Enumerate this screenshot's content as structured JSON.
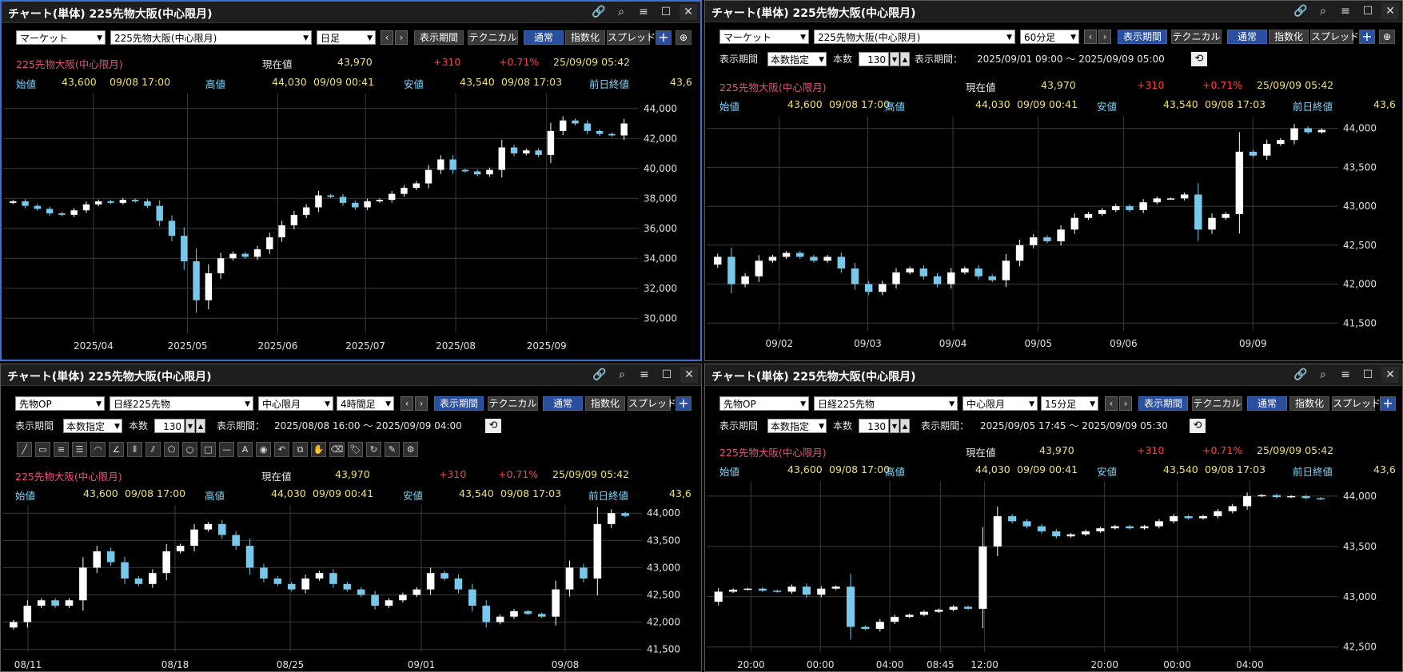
{
  "panels": [
    {
      "id": "p1",
      "title": "チャート(単体) 225先物大阪(中心限月)",
      "market_select": "マーケット",
      "symbol_select": "225先物大阪(中心限月)",
      "interval_select": "日足",
      "buttons": {
        "period": "表示期間",
        "technical": "テクニカル",
        "normal": "通常",
        "index": "指数化",
        "spread": "スプレッド"
      },
      "info": {
        "name": "225先物大阪(中心限月)",
        "current_label": "現在値",
        "current": "43,970",
        "change": "+310",
        "pct": "+0.71%",
        "datetime": "25/09/09 05:42",
        "open_label": "始値",
        "open": "43,600",
        "open_time": "09/08 17:00",
        "high_label": "高値",
        "high": "44,030",
        "high_time": "09/09 00:41",
        "low_label": "安値",
        "low": "43,540",
        "low_time": "09/08 17:03",
        "prev_label": "前日終値",
        "prev": "43,6"
      },
      "chart_data": {
        "type": "candlestick",
        "y_ticks": [
          "44,000",
          "42,000",
          "40,000",
          "38,000",
          "36,000",
          "34,000",
          "32,000",
          "30,000"
        ],
        "ylim": [
          29000,
          45000
        ],
        "x_ticks": [
          "2025/04",
          "2025/05",
          "2025/06",
          "2025/07",
          "2025/08",
          "2025/09"
        ],
        "closes": [
          37800,
          37500,
          37300,
          37000,
          36900,
          37200,
          37600,
          37800,
          37700,
          37900,
          37800,
          37500,
          36500,
          35500,
          33800,
          31200,
          33000,
          34000,
          34300,
          34100,
          34600,
          35400,
          36200,
          36900,
          37400,
          38200,
          38100,
          37700,
          37400,
          37800,
          37900,
          38300,
          38700,
          39000,
          39900,
          40600,
          39900,
          39800,
          39600,
          39900,
          41400,
          41000,
          41200,
          40900,
          42500,
          43200,
          43000,
          42500,
          42300,
          42200,
          43000
        ]
      }
    },
    {
      "id": "p2",
      "title": "チャート(単体) 225先物大阪(中心限月)",
      "market_select": "マーケット",
      "symbol_select": "225先物大阪(中心限月)",
      "interval_select": "60分足",
      "buttons": {
        "period": "表示期間",
        "technical": "テクニカル",
        "normal": "通常",
        "index": "指数化",
        "spread": "スプレッド"
      },
      "period_row": {
        "label": "表示期間",
        "mode": "本数指定",
        "count_label": "本数",
        "count": "130",
        "range_label": "表示期間：",
        "range": "2025/09/01 09:00 ～ 2025/09/09 05:00"
      },
      "info": {
        "name": "225先物大阪(中心限月)",
        "current_label": "現在値",
        "current": "43,970",
        "change": "+310",
        "pct": "+0.71%",
        "datetime": "25/09/09 05:42",
        "open_label": "始値",
        "open": "43,600",
        "open_time": "09/08 17:00",
        "high_label": "高値",
        "high": "44,030",
        "high_time": "09/09 00:41",
        "low_label": "安値",
        "low": "43,540",
        "low_time": "09/08 17:03",
        "prev_label": "前日終値",
        "prev": "43,6"
      },
      "chart_data": {
        "type": "candlestick",
        "y_ticks": [
          "44,000",
          "43,500",
          "43,000",
          "42,500",
          "42,000",
          "41,500"
        ],
        "ylim": [
          41400,
          44150
        ],
        "x_ticks": [
          "09/02",
          "09/03",
          "09/04",
          "09/05",
          "09/06",
          "09/09"
        ],
        "closes": [
          42350,
          42000,
          42100,
          42300,
          42350,
          42400,
          42350,
          42300,
          42350,
          42200,
          42000,
          41900,
          42000,
          42150,
          42200,
          42100,
          42000,
          42150,
          42200,
          42100,
          42050,
          42300,
          42500,
          42600,
          42550,
          42700,
          42850,
          42900,
          42950,
          43000,
          42950,
          43050,
          43100,
          43100,
          43150,
          42700,
          42850,
          42900,
          43700,
          43650,
          43800,
          43850,
          44000,
          43950,
          43980
        ]
      }
    },
    {
      "id": "p3",
      "title": "チャート(単体) 225先物大阪(中心限月)",
      "market_select": "先物OP",
      "symbol_select": "日経225先物",
      "month_select": "中心限月",
      "interval_select": "4時間足",
      "buttons": {
        "period": "表示期間",
        "technical": "テクニカル",
        "normal": "通常",
        "index": "指数化",
        "spread": "スプレッド"
      },
      "period_row": {
        "label": "表示期間",
        "mode": "本数指定",
        "count_label": "本数",
        "count": "130",
        "range_label": "表示期間：",
        "range": "2025/08/08 16:00 ～ 2025/09/09 04:00"
      },
      "draw_tools": [
        "line-icon",
        "ruler-icon",
        "fib-icon",
        "lines-icon",
        "arc-icon",
        "fan-icon",
        "grid-icon",
        "channel-icon",
        "pentagon-icon",
        "circle-icon",
        "rect-icon",
        "hline-icon",
        "text-icon",
        "icon-tool-icon",
        "undo-icon",
        "copy-icon",
        "pan-icon",
        "eraser-icon",
        "tag-icon",
        "rotate-icon",
        "settings2-icon",
        "gear-icon"
      ],
      "info": {
        "name": "225先物大阪(中心限月)",
        "current_label": "現在値",
        "current": "43,970",
        "change": "+310",
        "pct": "+0.71%",
        "datetime": "25/09/09 05:42",
        "open_label": "始値",
        "open": "43,600",
        "open_time": "09/08 17:00",
        "high_label": "高値",
        "high": "44,030",
        "high_time": "09/09 00:41",
        "low_label": "安値",
        "low": "43,540",
        "low_time": "09/08 17:03",
        "prev_label": "前日終値",
        "prev": "43,6"
      },
      "chart_data": {
        "type": "candlestick",
        "y_ticks": [
          "44,000",
          "43,500",
          "43,000",
          "42,500",
          "42,000",
          "41,500"
        ],
        "ylim": [
          41450,
          44150
        ],
        "x_ticks": [
          "08/11",
          "08/18",
          "08/25",
          "09/01",
          "09/08"
        ],
        "closes": [
          42000,
          42300,
          42400,
          42300,
          42400,
          43000,
          43300,
          43100,
          42800,
          42700,
          42900,
          43300,
          43400,
          43700,
          43800,
          43600,
          43400,
          43000,
          42800,
          42700,
          42600,
          42800,
          42900,
          42700,
          42600,
          42500,
          42300,
          42400,
          42500,
          42600,
          42900,
          42800,
          42600,
          42300,
          42000,
          42100,
          42200,
          42150,
          42100,
          42600,
          43000,
          42800,
          43800,
          44000,
          43950
        ]
      }
    },
    {
      "id": "p4",
      "title": "チャート(単体) 225先物大阪(中心限月)",
      "market_select": "先物OP",
      "symbol_select": "日経225先物",
      "month_select": "中心限月",
      "interval_select": "15分足",
      "buttons": {
        "period": "表示期間",
        "technical": "テクニカル",
        "normal": "通常",
        "index": "指数化",
        "spread": "スプレッド"
      },
      "period_row": {
        "label": "表示期間",
        "mode": "本数指定",
        "count_label": "本数",
        "count": "130",
        "range_label": "表示期間：",
        "range": "2025/09/05 17:45 ～ 2025/09/09 05:30"
      },
      "info": {
        "name": "225先物大阪(中心限月)",
        "current_label": "現在値",
        "current": "43,970",
        "change": "+310",
        "pct": "+0.71%",
        "datetime": "25/09/09 05:42",
        "open_label": "始値",
        "open": "43,600",
        "open_time": "09/08 17:00",
        "high_label": "高値",
        "high": "44,030",
        "high_time": "09/09 00:41",
        "low_label": "安値",
        "low": "43,540",
        "low_time": "09/08 17:03",
        "prev_label": "前日終値",
        "prev": "43,6"
      },
      "chart_data": {
        "type": "candlestick",
        "y_ticks": [
          "44,000",
          "43,500",
          "43,000",
          "42,500"
        ],
        "ylim": [
          42450,
          44150
        ],
        "x_ticks": [
          "20:00",
          "00:00",
          "04:00",
          "08:45",
          "12:00",
          "20:00",
          "00:00",
          "04:00"
        ],
        "closes": [
          43050,
          43070,
          43080,
          43060,
          43050,
          43100,
          43020,
          43080,
          43100,
          42700,
          42680,
          42750,
          42800,
          42820,
          42850,
          42870,
          42900,
          42880,
          43500,
          43800,
          43750,
          43700,
          43650,
          43600,
          43620,
          43650,
          43680,
          43700,
          43680,
          43700,
          43750,
          43800,
          43780,
          43800,
          43850,
          43900,
          44000,
          44010,
          43990,
          44000,
          43980,
          43970
        ]
      }
    }
  ]
}
